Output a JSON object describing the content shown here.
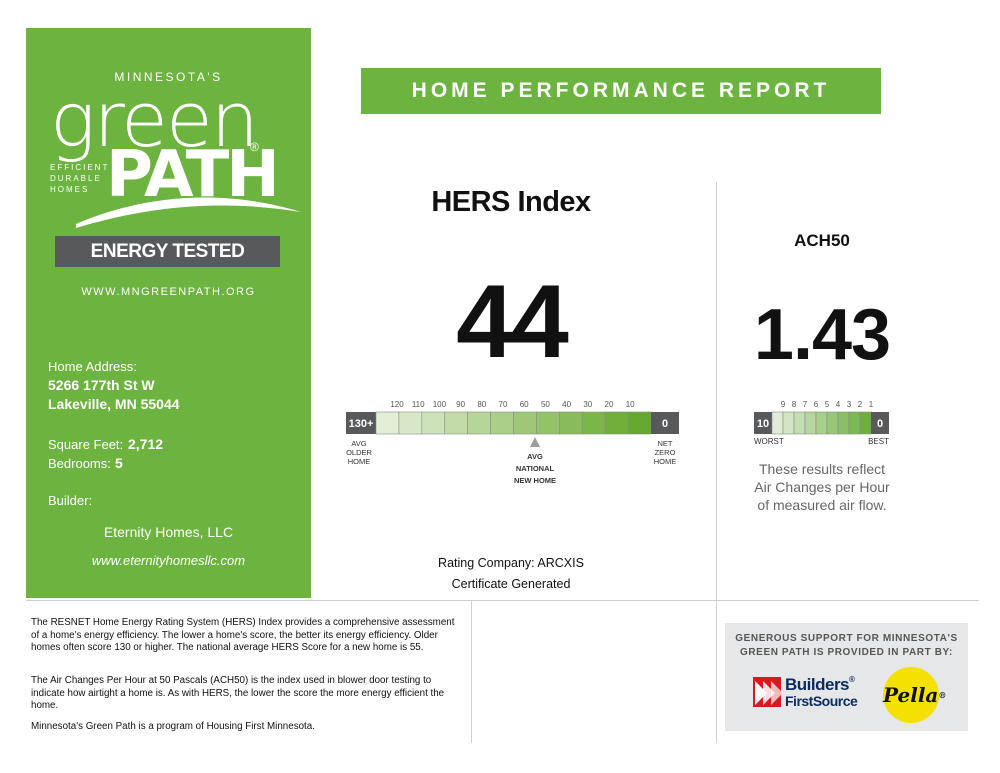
{
  "left_panel": {
    "logo": {
      "minnesota": "MINNESOTA'S",
      "green": "green",
      "path": "PATH",
      "registered": "®",
      "tagline": [
        "EFFICIENT",
        "DURABLE",
        "HOMES"
      ]
    },
    "energy_tested": "ENERGY TESTED",
    "website": "WWW.MNGREENPATH.ORG",
    "address_label": "Home Address:",
    "address_line1": "5266 177th St W",
    "address_line2": "Lakeville, MN 55044",
    "sqft_label": "Square Feet:",
    "sqft_value": "2,712",
    "bedrooms_label": "Bedrooms:",
    "bedrooms_value": "5",
    "builder_label": "Builder:",
    "builder_name": "Eternity Homes, LLC",
    "builder_url": "www.eternityhomesllc.com"
  },
  "report_title": "HOME PERFORMANCE REPORT",
  "hers": {
    "title": "HERS Index",
    "score": "44",
    "scale": {
      "ticks": [
        "120",
        "110",
        "100",
        "90",
        "80",
        "70",
        "60",
        "50",
        "40",
        "30",
        "20",
        "10"
      ],
      "left_label": "130+",
      "right_label": "0",
      "left_caption": [
        "AVG",
        "OLDER",
        "HOME"
      ],
      "right_caption": [
        "NET",
        "ZERO",
        "HOME"
      ],
      "avg_caption": [
        "AVG",
        "NATIONAL",
        "NEW HOME"
      ],
      "colors": [
        "#e3eed6",
        "#d8e8c7",
        "#cde2b8",
        "#c2dba8",
        "#b6d598",
        "#aacf88",
        "#9ec878",
        "#93c268",
        "#87bc58",
        "#7cb648",
        "#70b03a",
        "#65aa2e"
      ]
    }
  },
  "ach50": {
    "title": "ACH50",
    "score": "1.43",
    "scale": {
      "ticks": [
        "9",
        "8",
        "7",
        "6",
        "5",
        "4",
        "3",
        "2",
        "1"
      ],
      "left_label": "10",
      "right_label": "0",
      "left_caption": "WORST",
      "right_caption": "BEST"
    },
    "note": [
      "These results reflect",
      "Air Changes per Hour",
      "of measured air flow."
    ]
  },
  "rating_company": "Rating Company: ARCXIS",
  "certificate": "Certificate Generated",
  "description": {
    "p1": "The RESNET Home Energy Rating System (HERS) Index provides a comprehensive assessment of a home's energy efficiency. The lower a home's score, the better its energy efficiency. Older homes often score 130 or higher. The national average HERS Score for a new home is 55.",
    "p2": "The Air Changes Per Hour at 50 Pascals (ACH50) is the index used in blower door testing to indicate how airtight a home is. As with HERS, the lower the score the more energy efficient the home.",
    "p3": "Minnesota's Green Path is a program of Housing First Minnesota."
  },
  "sponsor": {
    "text": [
      "GENEROUS SUPPORT FOR MINNESOTA'S",
      "GREEN PATH IS PROVIDED IN PART BY:"
    ],
    "builders_line1": "Builders",
    "builders_line2": "FirstSource",
    "builders_reg": "®",
    "pella": "Pella",
    "pella_reg": "®"
  }
}
